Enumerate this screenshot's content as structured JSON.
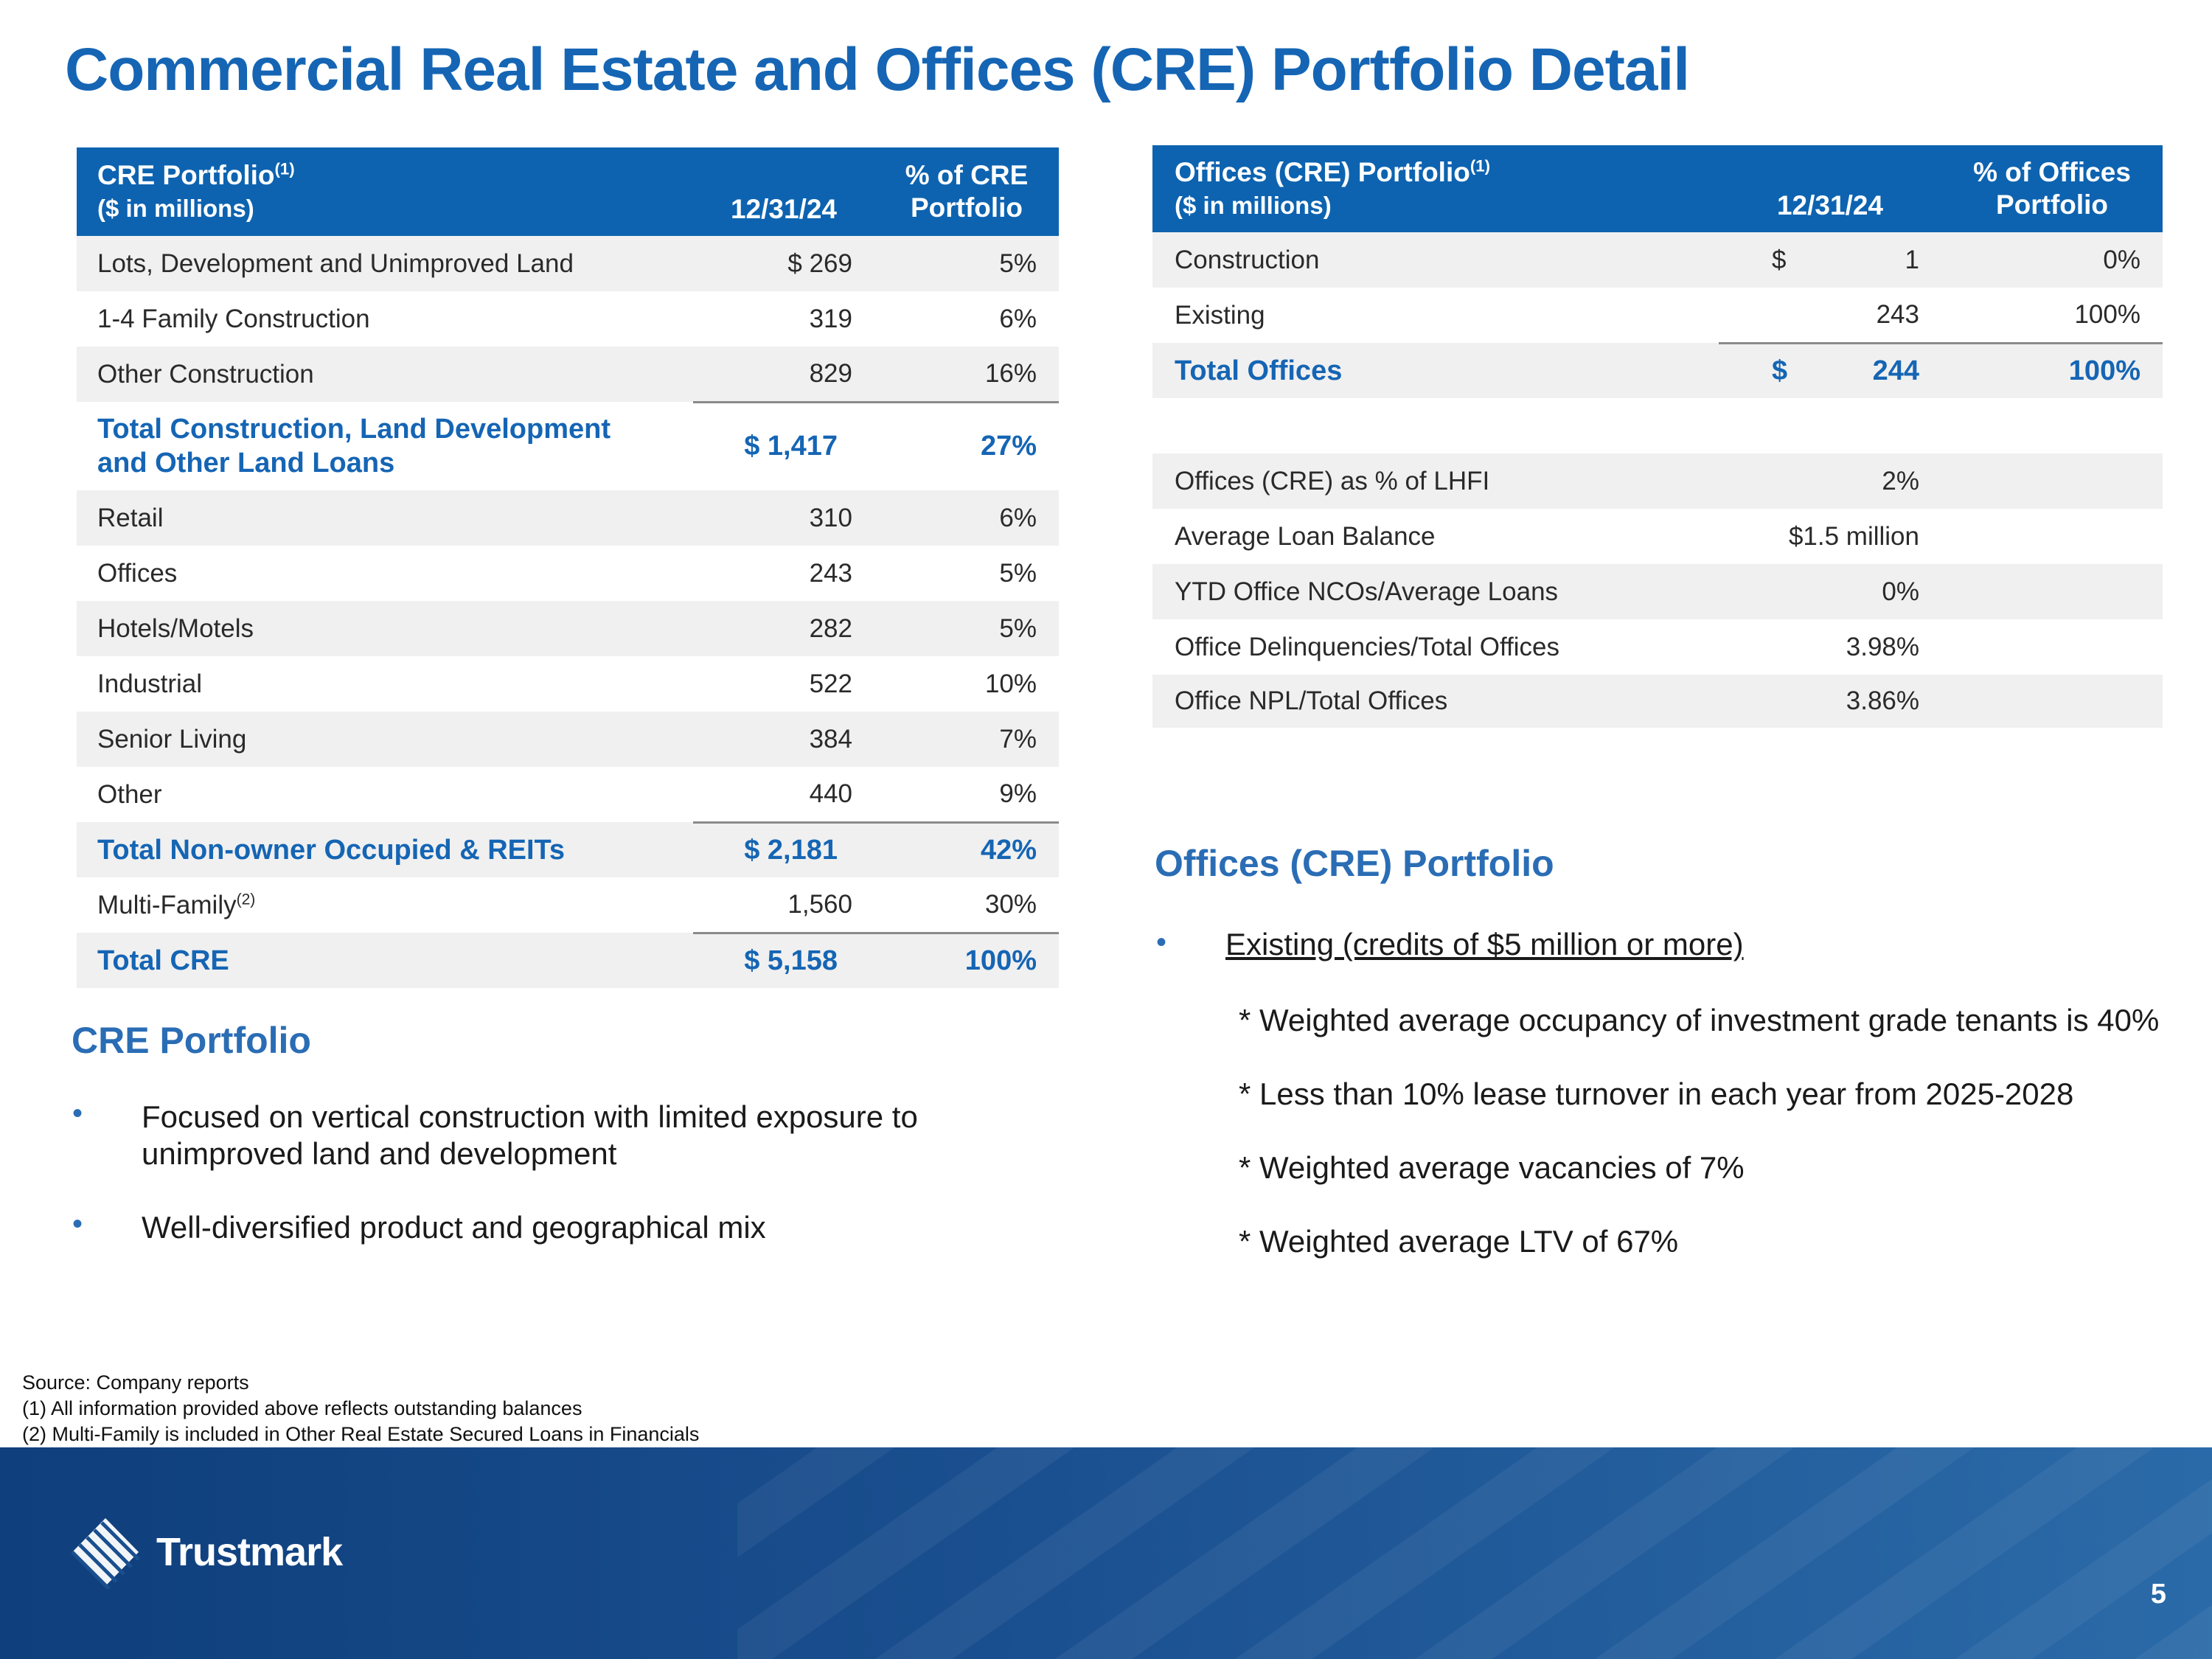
{
  "title": "Commercial Real Estate and Offices (CRE) Portfolio Detail",
  "cre_table": {
    "header": {
      "label": "CRE Portfolio",
      "label_sup": "(1)",
      "sublabel": "($ in millions)",
      "date": "12/31/24",
      "pct_line1": "% of CRE",
      "pct_line2": "Portfolio"
    },
    "rows": [
      {
        "label": "Lots, Development and Unimproved Land",
        "value": "$ 269",
        "pct": "5%"
      },
      {
        "label": "1-4 Family Construction",
        "value": "319",
        "pct": "6%"
      },
      {
        "label": "Other Construction",
        "value": "829",
        "pct": "16%"
      },
      {
        "label": "Total Construction, Land Development and Other Land Loans",
        "value": "$ 1,417",
        "pct": "27%"
      },
      {
        "label": "Retail",
        "value": "310",
        "pct": "6%"
      },
      {
        "label": "Offices",
        "value": "243",
        "pct": "5%"
      },
      {
        "label": "Hotels/Motels",
        "value": "282",
        "pct": "5%"
      },
      {
        "label": "Industrial",
        "value": "522",
        "pct": "10%"
      },
      {
        "label": "Senior Living",
        "value": "384",
        "pct": "7%"
      },
      {
        "label": "Other",
        "value": "440",
        "pct": "9%"
      },
      {
        "label": "Total Non-owner Occupied & REITs",
        "value": "$ 2,181",
        "pct": "42%"
      },
      {
        "label": "Multi-Family",
        "label_sup": "(2)",
        "value": "1,560",
        "pct": "30%"
      },
      {
        "label": "Total CRE",
        "value": "$ 5,158",
        "pct": "100%"
      }
    ]
  },
  "offices_table": {
    "header": {
      "label": "Offices (CRE) Portfolio",
      "label_sup": "(1)",
      "sublabel": "($ in millions)",
      "date": "12/31/24",
      "pct_line1": "% of Offices",
      "pct_line2": "Portfolio"
    },
    "rows": [
      {
        "label": "Construction",
        "currency": "$",
        "value": "1",
        "pct": "0%"
      },
      {
        "label": "Existing",
        "currency": "",
        "value": "243",
        "pct": "100%"
      },
      {
        "label": "Total Offices",
        "currency": "$",
        "value": "244",
        "pct": "100%"
      }
    ],
    "metrics": [
      {
        "label": "Offices (CRE) as % of LHFI",
        "value": "2%"
      },
      {
        "label": "Average Loan Balance",
        "value": "$1.5 million"
      },
      {
        "label": "YTD Office NCOs/Average Loans",
        "value": "0%"
      },
      {
        "label": "Office Delinquencies/Total Offices",
        "value": "3.98%"
      },
      {
        "label": "Office NPL/Total Offices",
        "value": "3.86%"
      }
    ]
  },
  "cre_section": {
    "heading": "CRE Portfolio",
    "bullets": [
      "Focused on vertical construction with limited exposure to unimproved land and development",
      "Well-diversified product and geographical mix"
    ]
  },
  "offices_section": {
    "heading": "Offices (CRE) Portfolio",
    "bullet": "Existing (credits of $5 million or more)",
    "sub_items": [
      "* Weighted average occupancy of investment grade tenants is 40%",
      "*  Less than 10% lease turnover in each year from 2025-2028",
      "*  Weighted average vacancies of 7%",
      "*  Weighted average LTV of 67%"
    ]
  },
  "footnotes": [
    "Source: Company reports",
    "(1) All information provided above reflects outstanding balances",
    "(2) Multi-Family is included in Other Real Estate Secured  Loans in Financials"
  ],
  "footer": {
    "logo_text": "Trustmark",
    "page_number": "5"
  },
  "colors": {
    "brand_blue": "#1565b4",
    "header_blue": "#0d63b0",
    "footer_navy": "#0f3f7c"
  }
}
